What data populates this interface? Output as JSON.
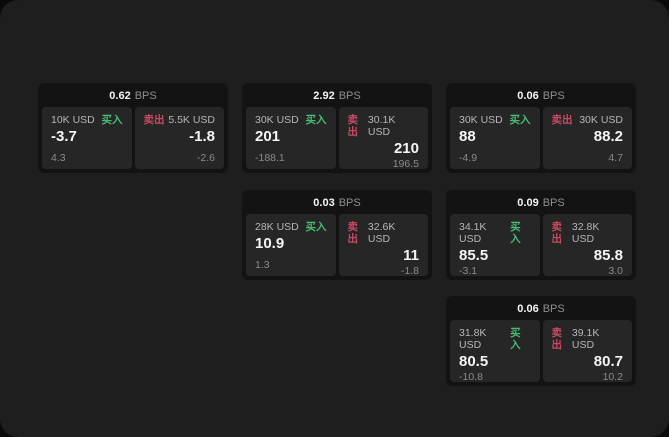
{
  "labels": {
    "bps_unit": "BPS",
    "buy": "买入",
    "sell": "卖出"
  },
  "colors": {
    "window_bg": "#1e1e1e",
    "card_bg": "#131313",
    "panel_bg": "#262626",
    "buy_green": "#46bd72",
    "sell_red": "#c94a63",
    "value_white": "#f5f5f5",
    "muted_gray": "#8a8a8a"
  },
  "cards": [
    {
      "bps": "0.62",
      "buy": {
        "amount": "10K USD",
        "value": "-3.7",
        "delta": "4.3"
      },
      "sell": {
        "amount": "5.5K USD",
        "value": "-1.8",
        "delta": "-2.6"
      }
    },
    {
      "bps": "2.92",
      "buy": {
        "amount": "30K USD",
        "value": "201",
        "delta": "-188.1"
      },
      "sell": {
        "amount": "30.1K USD",
        "value": "210",
        "delta": "196.5"
      }
    },
    {
      "bps": "0.06",
      "buy": {
        "amount": "30K USD",
        "value": "88",
        "delta": "-4.9"
      },
      "sell": {
        "amount": "30K USD",
        "value": "88.2",
        "delta": "4.7"
      }
    },
    {
      "bps": "0.03",
      "buy": {
        "amount": "28K USD",
        "value": "10.9",
        "delta": "1.3"
      },
      "sell": {
        "amount": "32.6K USD",
        "value": "11",
        "delta": "-1.8"
      }
    },
    {
      "bps": "0.09",
      "buy": {
        "amount": "34.1K USD",
        "value": "85.5",
        "delta": "-3.1"
      },
      "sell": {
        "amount": "32.8K USD",
        "value": "85.8",
        "delta": "3.0"
      }
    },
    {
      "bps": "0.06",
      "buy": {
        "amount": "31.8K USD",
        "value": "80.5",
        "delta": "-10.8"
      },
      "sell": {
        "amount": "39.1K USD",
        "value": "80.7",
        "delta": "10.2"
      }
    }
  ]
}
